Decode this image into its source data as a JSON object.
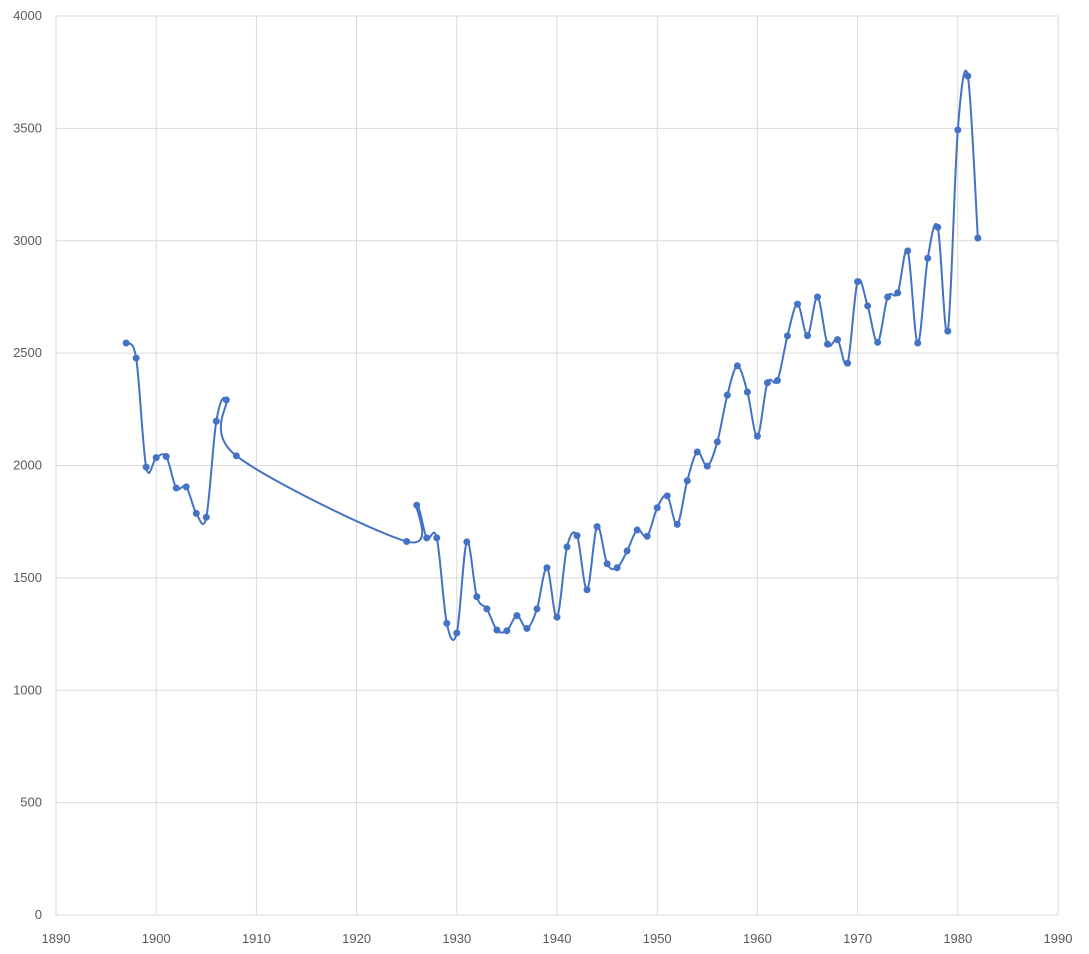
{
  "colors": {
    "series": "#4472C4",
    "grid": "#D9D9D9",
    "text": "#595959",
    "background": "#FFFFFF"
  },
  "chart_data": {
    "type": "line",
    "title": "",
    "xlabel": "",
    "ylabel": "",
    "xlim": [
      1890,
      1990
    ],
    "ylim": [
      0,
      4000
    ],
    "xticks": [
      1890,
      1900,
      1910,
      1920,
      1930,
      1940,
      1950,
      1960,
      1970,
      1980,
      1990
    ],
    "yticks": [
      0,
      500,
      1000,
      1500,
      2000,
      2500,
      3000,
      3500,
      4000
    ],
    "grid": true,
    "legend": "none",
    "smooth": true,
    "markers": true,
    "series": [
      {
        "x": [
          1897,
          1898,
          1899,
          1900,
          1901,
          1902,
          1903,
          1904,
          1905,
          1906,
          1907,
          1908,
          1925,
          1926,
          1927,
          1928,
          1929,
          1930,
          1931,
          1932,
          1933,
          1934,
          1935,
          1936,
          1937,
          1938,
          1939,
          1940,
          1941,
          1942,
          1943,
          1944,
          1945,
          1946,
          1947,
          1948,
          1949,
          1950,
          1951,
          1952,
          1953,
          1954,
          1955,
          1956,
          1957,
          1958,
          1959,
          1960,
          1961,
          1962,
          1963,
          1964,
          1965,
          1966,
          1967,
          1968,
          1969,
          1970,
          1971,
          1972,
          1973,
          1974,
          1975,
          1976,
          1977,
          1978,
          1979,
          1980,
          1981,
          1982
        ],
        "y": [
          2545,
          2478,
          1993,
          2035,
          2040,
          1900,
          1905,
          1787,
          1770,
          2197,
          2292,
          2043,
          1662,
          1823,
          1678,
          1678,
          1298,
          1255,
          1660,
          1416,
          1362,
          1268,
          1265,
          1332,
          1275,
          1362,
          1545,
          1325,
          1638,
          1688,
          1447,
          1728,
          1563,
          1545,
          1620,
          1713,
          1685,
          1812,
          1865,
          1738,
          1932,
          2060,
          1997,
          2105,
          2313,
          2443,
          2327,
          2130,
          2368,
          2378,
          2577,
          2718,
          2578,
          2750,
          2540,
          2560,
          2455,
          2818,
          2710,
          2548,
          2750,
          2768,
          2955,
          2545,
          2922,
          3060,
          2598,
          3493,
          3733,
          3012
        ]
      }
    ]
  }
}
